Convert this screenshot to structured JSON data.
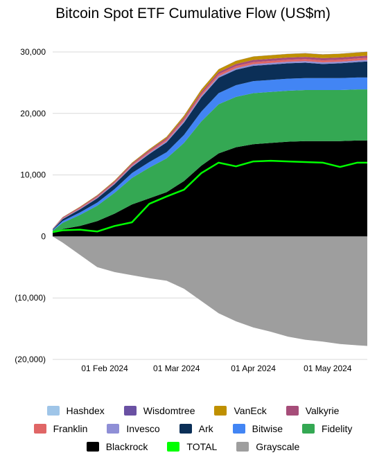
{
  "chart_data": {
    "type": "area",
    "title": "Bitcoin Spot ETF Cumulative Flow (US$m)",
    "xlabel": "",
    "ylabel": "",
    "ylim": [
      -20000,
      30000
    ],
    "y_ticks": [
      30000,
      20000,
      10000,
      0,
      -10000,
      -20000
    ],
    "y_tick_labels": [
      "30,000",
      "20,000",
      "10,000",
      "0",
      "(10,000)",
      "(20,000)"
    ],
    "x_ticks": [
      "2024-02-01",
      "2024-03-01",
      "2024-04-01",
      "2024-05-01"
    ],
    "x_tick_labels": [
      "01 Feb 2024",
      "01 Mar 2024",
      "01 Apr 2024",
      "01 May 2024"
    ],
    "x_range": [
      "2024-01-11",
      "2024-05-17"
    ],
    "x": [
      "2024-01-11",
      "2024-01-15",
      "2024-01-22",
      "2024-01-29",
      "2024-02-05",
      "2024-02-12",
      "2024-02-19",
      "2024-02-26",
      "2024-03-04",
      "2024-03-11",
      "2024-03-18",
      "2024-03-25",
      "2024-04-01",
      "2024-04-08",
      "2024-04-15",
      "2024-04-22",
      "2024-04-29",
      "2024-05-06",
      "2024-05-13",
      "2024-05-17"
    ],
    "stack_order": [
      "Blackrock",
      "Fidelity",
      "Bitwise",
      "Ark",
      "Invesco",
      "Franklin",
      "Valkyrie",
      "VanEck",
      "Wisdomtree",
      "Hashdex"
    ],
    "series": [
      {
        "name": "Blackrock",
        "color": "#000000",
        "values": [
          700,
          1200,
          1700,
          2500,
          3700,
          5200,
          6200,
          7200,
          9000,
          11500,
          13500,
          14500,
          15000,
          15200,
          15400,
          15500,
          15500,
          15500,
          15600,
          15600
        ]
      },
      {
        "name": "Fidelity",
        "color": "#34a853",
        "values": [
          250,
          1000,
          1800,
          2500,
          3400,
          4300,
          5000,
          5500,
          6200,
          7200,
          8000,
          8200,
          8300,
          8300,
          8300,
          8300,
          8300,
          8300,
          8300,
          8300
        ]
      },
      {
        "name": "Bitwise",
        "color": "#4285f4",
        "values": [
          100,
          300,
          400,
          500,
          600,
          800,
          900,
          1000,
          1300,
          1600,
          1800,
          1900,
          1950,
          1950,
          1950,
          1950,
          1950,
          1950,
          1950,
          1950
        ]
      },
      {
        "name": "Ark",
        "color": "#0b2f57",
        "values": [
          100,
          300,
          500,
          700,
          800,
          1000,
          1300,
          1600,
          2000,
          2300,
          2500,
          2500,
          2500,
          2500,
          2500,
          2500,
          2300,
          2400,
          2500,
          2600
        ]
      },
      {
        "name": "Invesco",
        "color": "#8f8fd6",
        "values": [
          30,
          80,
          100,
          120,
          140,
          160,
          180,
          200,
          250,
          250,
          260,
          260,
          260,
          260,
          260,
          260,
          260,
          260,
          260,
          260
        ]
      },
      {
        "name": "Franklin",
        "color": "#e06666",
        "values": [
          30,
          100,
          130,
          150,
          170,
          200,
          230,
          250,
          280,
          300,
          320,
          330,
          330,
          330,
          330,
          330,
          330,
          330,
          330,
          330
        ]
      },
      {
        "name": "Valkyrie",
        "color": "#a64d79",
        "values": [
          30,
          100,
          130,
          160,
          180,
          200,
          230,
          260,
          300,
          330,
          350,
          360,
          360,
          360,
          360,
          360,
          360,
          360,
          360,
          360
        ]
      },
      {
        "name": "VanEck",
        "color": "#bf9000",
        "values": [
          20,
          50,
          70,
          90,
          100,
          120,
          150,
          200,
          300,
          400,
          450,
          500,
          550,
          560,
          570,
          580,
          590,
          600,
          600,
          620
        ]
      },
      {
        "name": "Wisdomtree",
        "color": "#6a51a3",
        "values": [
          5,
          5,
          5,
          10,
          10,
          10,
          10,
          10,
          20,
          20,
          20,
          20,
          25,
          25,
          25,
          25,
          25,
          25,
          25,
          25
        ]
      },
      {
        "name": "Hashdex",
        "color": "#9fc5e8",
        "values": [
          0,
          0,
          0,
          0,
          0,
          0,
          0,
          0,
          0,
          0,
          0,
          0,
          5,
          10,
          10,
          10,
          10,
          10,
          10,
          10
        ]
      },
      {
        "name": "Grayscale",
        "color": "#9e9e9e",
        "values": [
          0,
          -1000,
          -3000,
          -5000,
          -5800,
          -6300,
          -6800,
          -7200,
          -8500,
          -10500,
          -12500,
          -13800,
          -14800,
          -15500,
          -16300,
          -16800,
          -17100,
          -17500,
          -17700,
          -17800
        ]
      },
      {
        "name": "TOTAL",
        "color": "#00ff00",
        "type": "line",
        "values": [
          700,
          1000,
          1100,
          800,
          1700,
          2300,
          5300,
          6500,
          7600,
          10300,
          12000,
          11400,
          12200,
          12300,
          12200,
          12100,
          12000,
          11300,
          12000,
          12000
        ]
      }
    ]
  },
  "legend": {
    "rows": [
      [
        {
          "label": "Hashdex",
          "color": "#9fc5e8"
        },
        {
          "label": "Wisdomtree",
          "color": "#6a51a3"
        },
        {
          "label": "VanEck",
          "color": "#bf9000"
        },
        {
          "label": "Valkyrie",
          "color": "#a64d79"
        }
      ],
      [
        {
          "label": "Franklin",
          "color": "#e06666"
        },
        {
          "label": "Invesco",
          "color": "#8f8fd6"
        },
        {
          "label": "Ark",
          "color": "#0b2f57"
        },
        {
          "label": "Bitwise",
          "color": "#4285f4"
        },
        {
          "label": "Fidelity",
          "color": "#34a853"
        }
      ],
      [
        {
          "label": "Blackrock",
          "color": "#000000"
        },
        {
          "label": "TOTAL",
          "color": "#00ff00"
        },
        {
          "label": "Grayscale",
          "color": "#9e9e9e"
        }
      ]
    ]
  }
}
